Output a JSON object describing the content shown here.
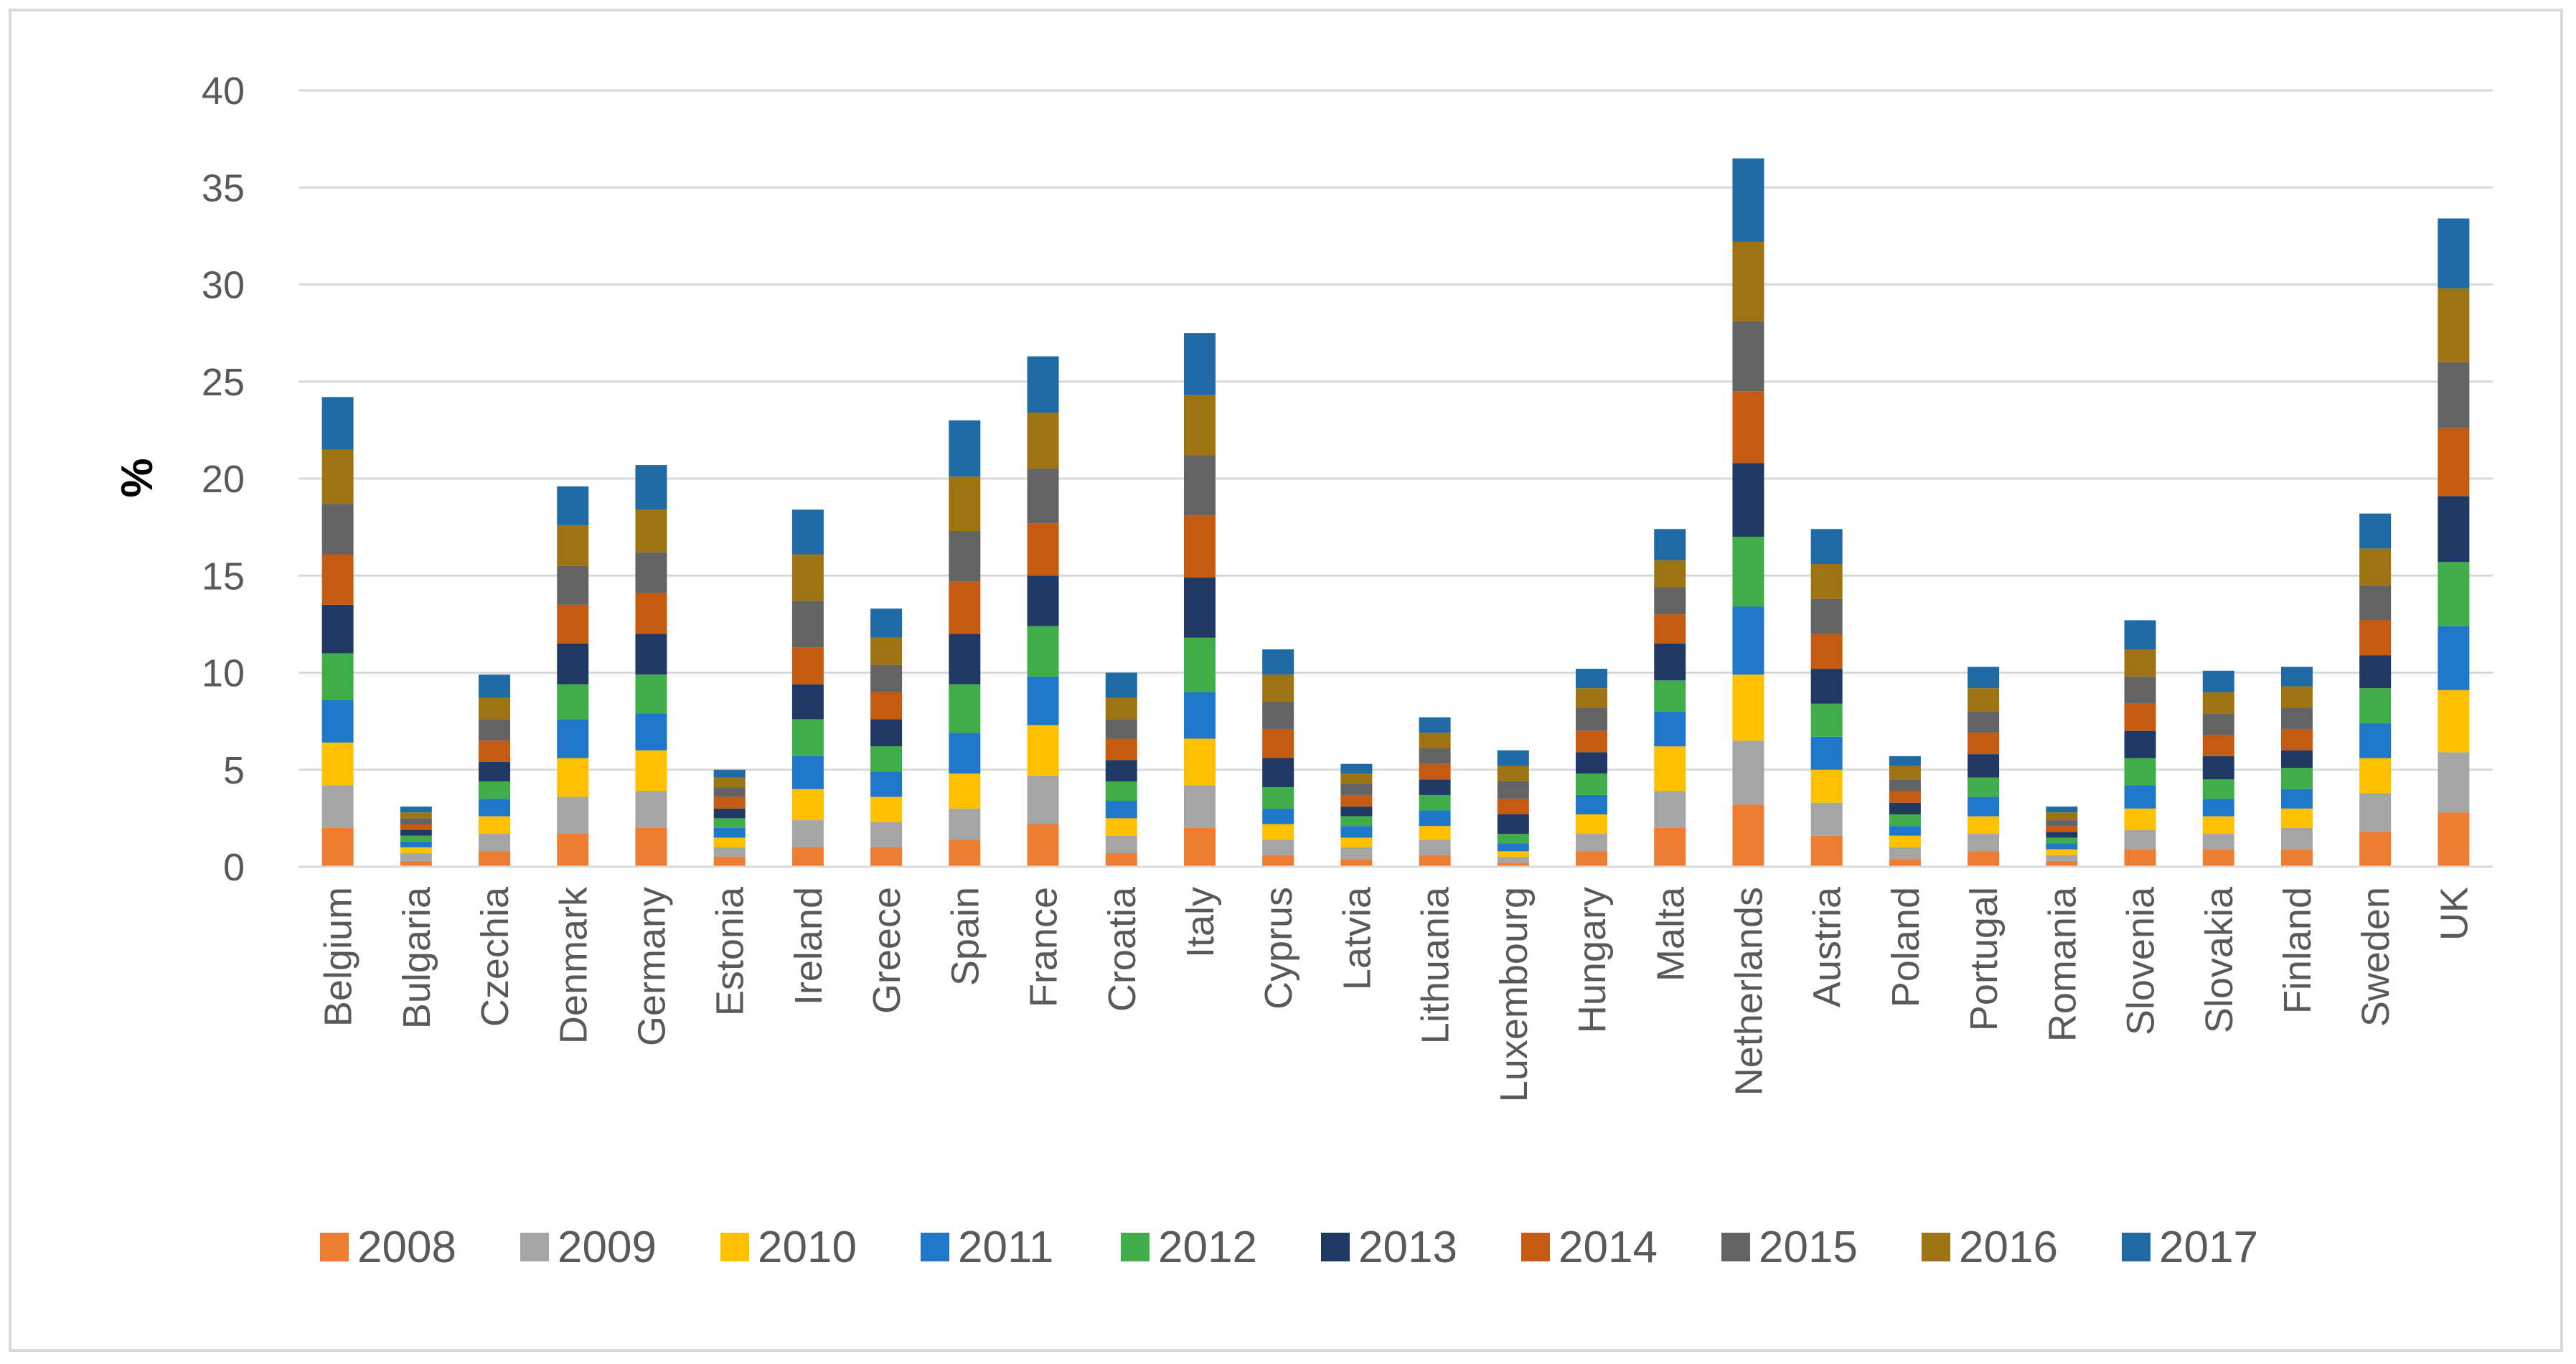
{
  "chart_data": {
    "type": "bar",
    "stacked": true,
    "title": "",
    "xlabel": "",
    "ylabel": "%",
    "ylim": [
      0,
      40
    ],
    "yticks": [
      0,
      5,
      10,
      15,
      20,
      25,
      30,
      35,
      40
    ],
    "grid": true,
    "legend_position": "bottom",
    "categories": [
      "Belgium",
      "Bulgaria",
      "Czechia",
      "Denmark",
      "Germany",
      "Estonia",
      "Ireland",
      "Greece",
      "Spain",
      "France",
      "Croatia",
      "Italy",
      "Cyprus",
      "Latvia",
      "Lithuania",
      "Luxembourg",
      "Hungary",
      "Malta",
      "Netherlands",
      "Austria",
      "Poland",
      "Portugal",
      "Romania",
      "Slovenia",
      "Slovakia",
      "Finland",
      "Sweden",
      "UK"
    ],
    "series": [
      {
        "name": "2008",
        "color": "#ED7D31",
        "values": [
          2.0,
          0.3,
          0.8,
          1.7,
          2.0,
          0.5,
          1.0,
          1.0,
          1.4,
          2.2,
          0.7,
          2.0,
          0.6,
          0.4,
          0.6,
          0.2,
          0.8,
          2.0,
          3.2,
          1.6,
          0.4,
          0.8,
          0.3,
          0.9,
          0.9,
          0.9,
          1.8,
          2.8
        ]
      },
      {
        "name": "2009",
        "color": "#A5A5A5",
        "values": [
          2.2,
          0.4,
          0.9,
          1.9,
          1.9,
          0.5,
          1.4,
          1.3,
          1.6,
          2.5,
          0.9,
          2.2,
          0.8,
          0.6,
          0.8,
          0.3,
          0.9,
          1.9,
          3.3,
          1.7,
          0.6,
          0.9,
          0.3,
          1.0,
          0.8,
          1.1,
          2.0,
          3.1
        ]
      },
      {
        "name": "2010",
        "color": "#FFC000",
        "values": [
          2.2,
          0.3,
          0.9,
          2.0,
          2.1,
          0.5,
          1.6,
          1.3,
          1.8,
          2.6,
          0.9,
          2.4,
          0.8,
          0.5,
          0.7,
          0.3,
          1.0,
          2.3,
          3.4,
          1.7,
          0.6,
          0.9,
          0.3,
          1.1,
          0.9,
          1.0,
          1.8,
          3.2
        ]
      },
      {
        "name": "2011",
        "color": "#1F77C9",
        "values": [
          2.2,
          0.3,
          0.9,
          2.0,
          1.9,
          0.5,
          1.7,
          1.3,
          2.1,
          2.5,
          0.9,
          2.4,
          0.8,
          0.6,
          0.8,
          0.4,
          1.0,
          1.8,
          3.5,
          1.7,
          0.5,
          1.0,
          0.3,
          1.2,
          0.9,
          1.0,
          1.8,
          3.3
        ]
      },
      {
        "name": "2012",
        "color": "#3FAE49",
        "values": [
          2.4,
          0.3,
          0.9,
          1.8,
          2.0,
          0.5,
          1.9,
          1.3,
          2.5,
          2.6,
          1.0,
          2.8,
          1.1,
          0.5,
          0.8,
          0.5,
          1.1,
          1.6,
          3.6,
          1.7,
          0.6,
          1.0,
          0.3,
          1.4,
          1.0,
          1.1,
          1.8,
          3.3
        ]
      },
      {
        "name": "2013",
        "color": "#203864",
        "values": [
          2.5,
          0.3,
          1.0,
          2.1,
          2.1,
          0.5,
          1.8,
          1.4,
          2.6,
          2.6,
          1.1,
          3.1,
          1.5,
          0.5,
          0.8,
          1.0,
          1.1,
          1.9,
          3.8,
          1.8,
          0.6,
          1.2,
          0.3,
          1.4,
          1.2,
          0.9,
          1.7,
          3.4
        ]
      },
      {
        "name": "2014",
        "color": "#C55A11",
        "values": [
          2.6,
          0.3,
          1.1,
          2.0,
          2.1,
          0.6,
          1.9,
          1.4,
          2.7,
          2.7,
          1.1,
          3.2,
          1.5,
          0.6,
          0.8,
          0.8,
          1.1,
          1.5,
          3.7,
          1.8,
          0.6,
          1.1,
          0.3,
          1.4,
          1.1,
          1.1,
          1.8,
          3.5
        ]
      },
      {
        "name": "2015",
        "color": "#636363",
        "values": [
          2.6,
          0.3,
          1.1,
          2.0,
          2.1,
          0.5,
          2.4,
          1.4,
          2.6,
          2.8,
          1.0,
          3.1,
          1.4,
          0.6,
          0.8,
          0.9,
          1.2,
          1.4,
          3.6,
          1.8,
          0.6,
          1.1,
          0.3,
          1.4,
          1.1,
          1.1,
          1.8,
          3.4
        ]
      },
      {
        "name": "2016",
        "color": "#9E7412",
        "values": [
          2.8,
          0.3,
          1.1,
          2.1,
          2.2,
          0.5,
          2.4,
          1.4,
          2.8,
          2.9,
          1.1,
          3.1,
          1.4,
          0.5,
          0.8,
          0.8,
          1.0,
          1.4,
          4.1,
          1.8,
          0.7,
          1.2,
          0.4,
          1.4,
          1.1,
          1.1,
          1.9,
          3.8
        ]
      },
      {
        "name": "2017",
        "color": "#1F6AA5",
        "values": [
          2.7,
          0.3,
          1.2,
          2.0,
          2.3,
          0.4,
          2.3,
          1.5,
          2.9,
          2.9,
          1.3,
          3.2,
          1.3,
          0.5,
          0.8,
          0.8,
          1.0,
          1.6,
          4.3,
          1.8,
          0.5,
          1.1,
          0.3,
          1.5,
          1.1,
          1.0,
          1.8,
          3.6
        ]
      }
    ]
  }
}
